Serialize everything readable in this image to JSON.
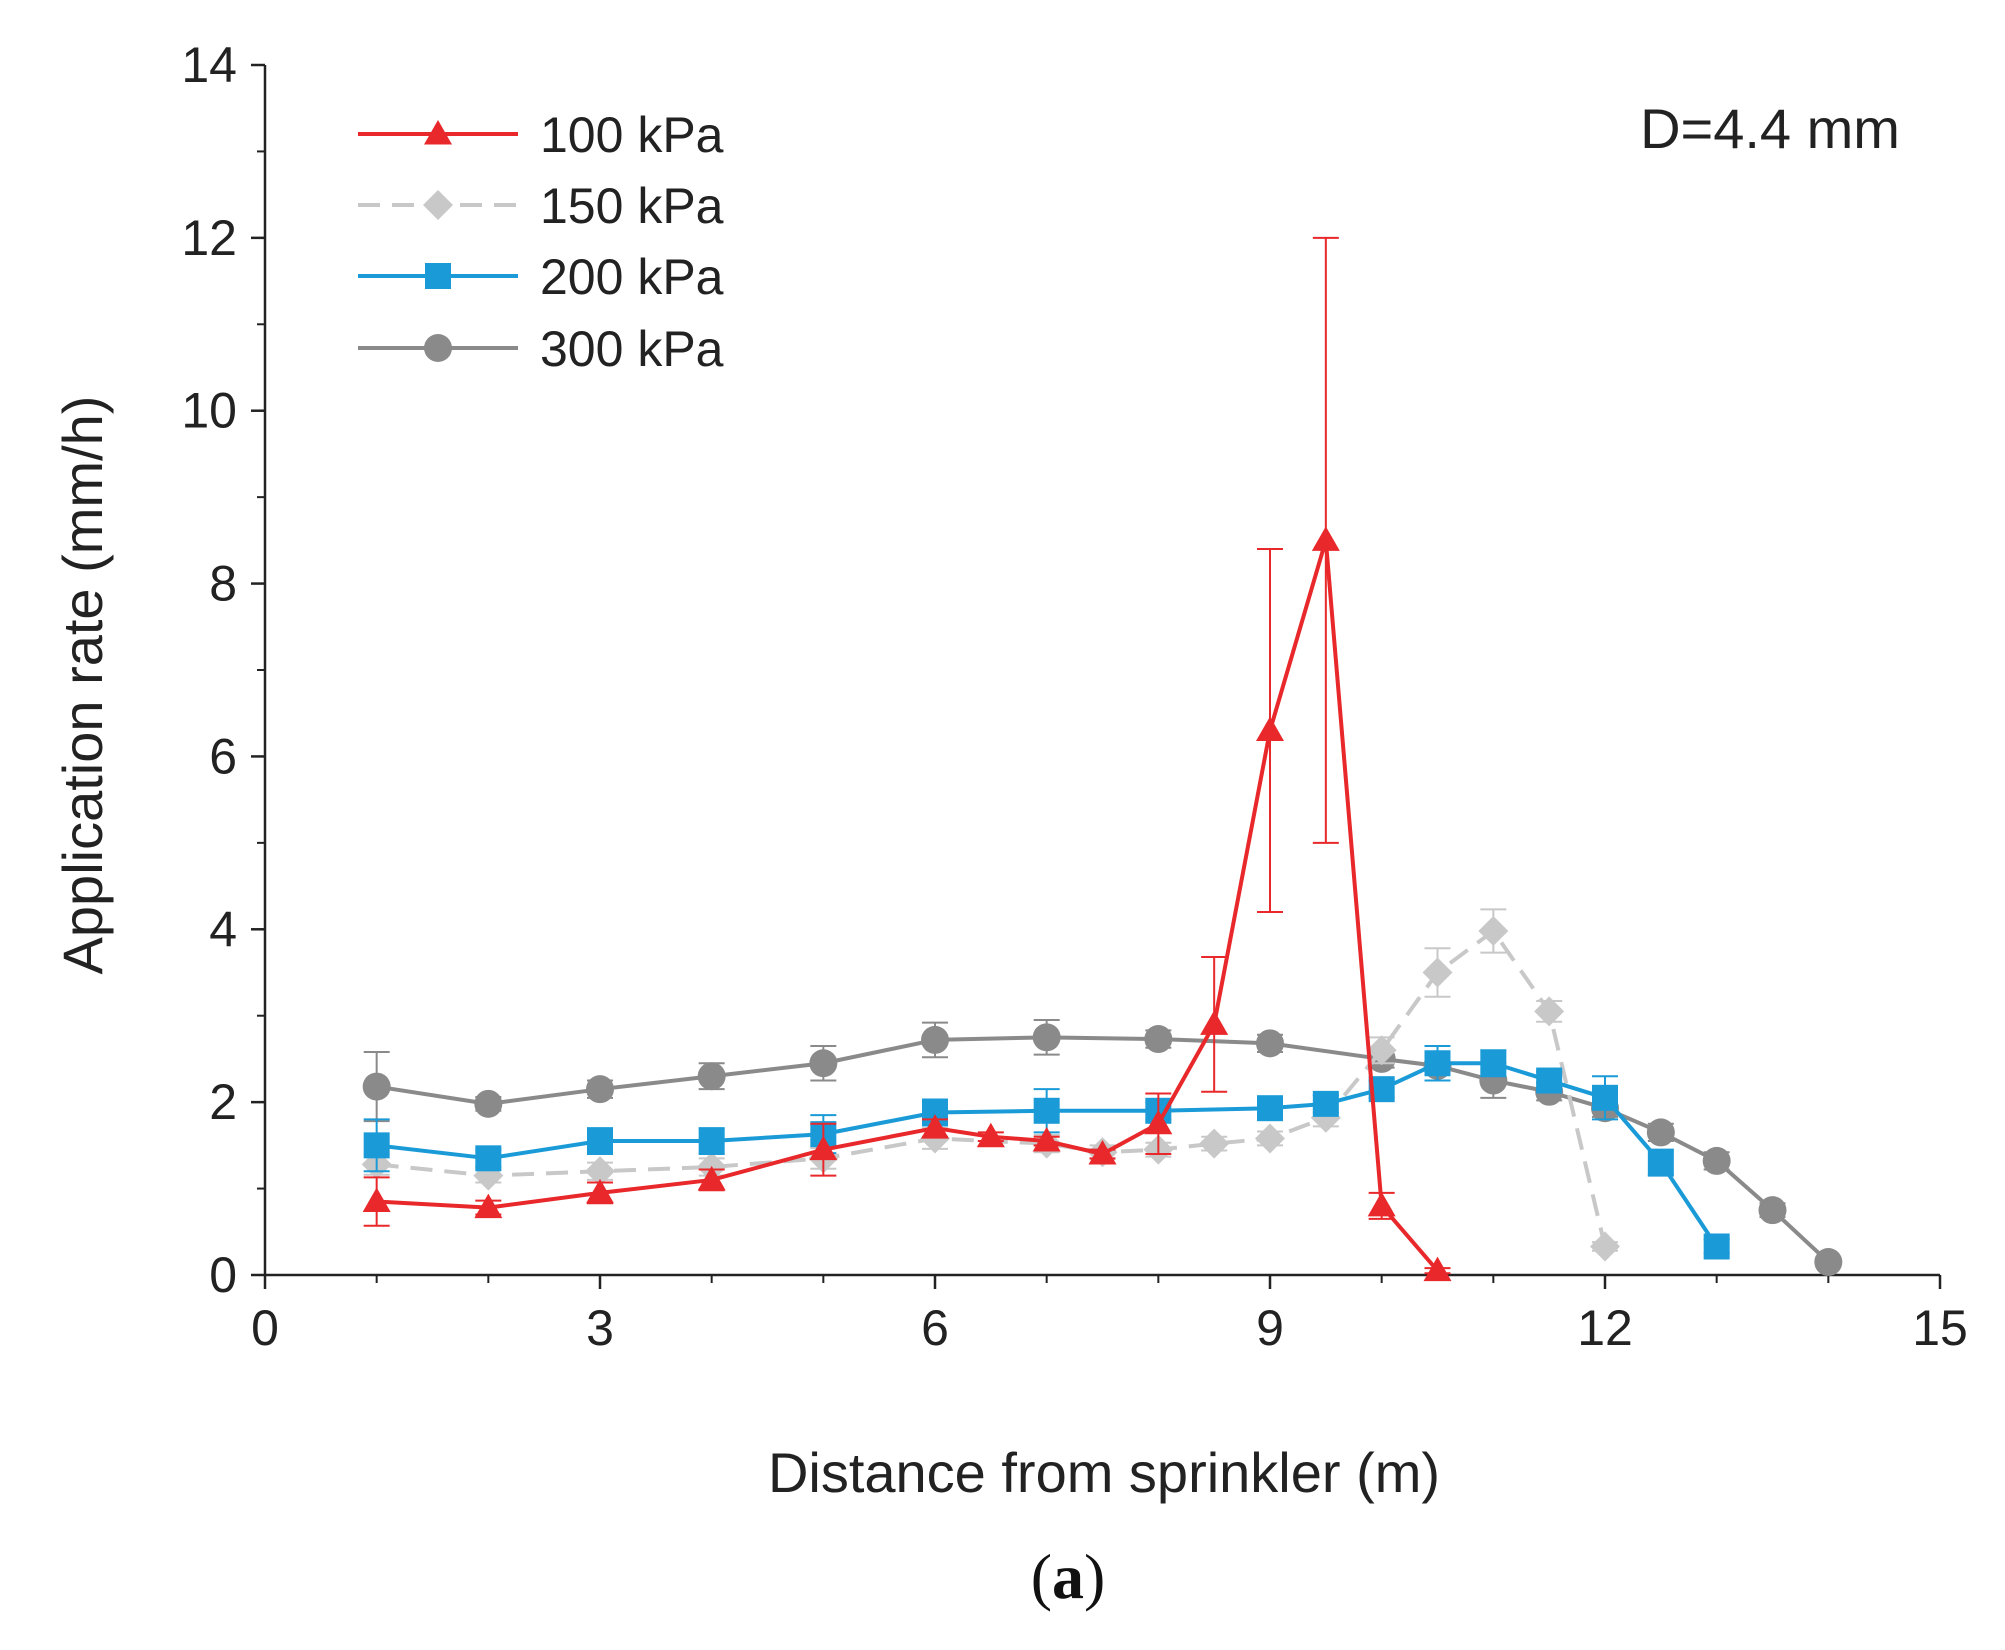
{
  "chart_data": {
    "type": "line",
    "title": "",
    "xlabel": "Distance from sprinkler (m)",
    "ylabel": "Application rate (mm/h)",
    "xlim": [
      0,
      15
    ],
    "ylim": [
      0,
      14
    ],
    "x_ticks": [
      0,
      3,
      6,
      9,
      12,
      15
    ],
    "y_ticks": [
      0,
      2,
      4,
      6,
      8,
      10,
      12,
      14
    ],
    "x_tick_labels": [
      "0",
      "3",
      "6",
      "9",
      "12",
      "15"
    ],
    "y_tick_labels": [
      "0",
      "2",
      "4",
      "6",
      "8",
      "10",
      "12",
      "14"
    ],
    "grid": false,
    "legend_position": "top-left",
    "annotation": "D=4.4 mm",
    "panel_label": {
      "open": "(",
      "letter": "a",
      "close": ")"
    },
    "series": [
      {
        "name": "100 kPa",
        "color": "#e8282a",
        "marker": "triangle",
        "dashed": false,
        "x": [
          1,
          2,
          3,
          4,
          5,
          6,
          6.5,
          7,
          7.5,
          8,
          8.5,
          9,
          9.5,
          10,
          10.5
        ],
        "y": [
          0.85,
          0.78,
          0.95,
          1.1,
          1.45,
          1.7,
          1.6,
          1.55,
          1.4,
          1.75,
          2.9,
          6.3,
          8.5,
          0.8,
          0.05
        ],
        "err": [
          0.28,
          0.08,
          0.12,
          0.12,
          0.3,
          0.1,
          0.05,
          0.05,
          0.05,
          0.35,
          0.78,
          2.1,
          3.5,
          0.15,
          0.03
        ]
      },
      {
        "name": "150 kPa",
        "color": "#c8c8c8",
        "marker": "diamond",
        "dashed": true,
        "x": [
          1,
          2,
          3,
          4,
          5,
          6,
          7,
          7.5,
          8,
          8.5,
          9,
          9.5,
          10,
          10.5,
          11,
          11.5,
          12
        ],
        "y": [
          1.28,
          1.15,
          1.2,
          1.25,
          1.35,
          1.58,
          1.52,
          1.42,
          1.45,
          1.52,
          1.58,
          1.82,
          2.6,
          3.5,
          3.98,
          3.05,
          0.33
        ],
        "err": [
          0.12,
          0.08,
          0.1,
          0.1,
          0.12,
          0.12,
          0.1,
          0.08,
          0.08,
          0.08,
          0.08,
          0.1,
          0.15,
          0.28,
          0.25,
          0.12,
          0.05
        ]
      },
      {
        "name": "200 kPa",
        "color": "#1a9bd7",
        "marker": "square",
        "dashed": false,
        "x": [
          1,
          2,
          3,
          4,
          5,
          6,
          7,
          8,
          9,
          9.5,
          10,
          10.5,
          11,
          11.5,
          12,
          12.5,
          13
        ],
        "y": [
          1.5,
          1.35,
          1.55,
          1.55,
          1.63,
          1.88,
          1.9,
          1.9,
          1.93,
          1.98,
          2.15,
          2.45,
          2.45,
          2.25,
          2.05,
          1.3,
          0.33
        ],
        "err": [
          0.3,
          0.1,
          0.15,
          0.15,
          0.22,
          0.15,
          0.25,
          0.1,
          0.1,
          0.1,
          0.1,
          0.2,
          0.15,
          0.1,
          0.25,
          0.15,
          0.08
        ]
      },
      {
        "name": "300 kPa",
        "color": "#8a8a8a",
        "marker": "circle",
        "dashed": false,
        "x": [
          1,
          2,
          3,
          4,
          5,
          6,
          7,
          8,
          9,
          10,
          10.5,
          11,
          11.5,
          12,
          12.5,
          13,
          13.5,
          14
        ],
        "y": [
          2.18,
          1.98,
          2.15,
          2.3,
          2.45,
          2.72,
          2.75,
          2.73,
          2.68,
          2.5,
          2.42,
          2.25,
          2.12,
          1.93,
          1.65,
          1.32,
          0.75,
          0.15
        ],
        "err": [
          0.4,
          0.08,
          0.1,
          0.15,
          0.2,
          0.2,
          0.2,
          0.1,
          0.1,
          0.1,
          0.1,
          0.2,
          0.1,
          0.1,
          0.1,
          0.1,
          0.08,
          0.05
        ]
      }
    ]
  }
}
